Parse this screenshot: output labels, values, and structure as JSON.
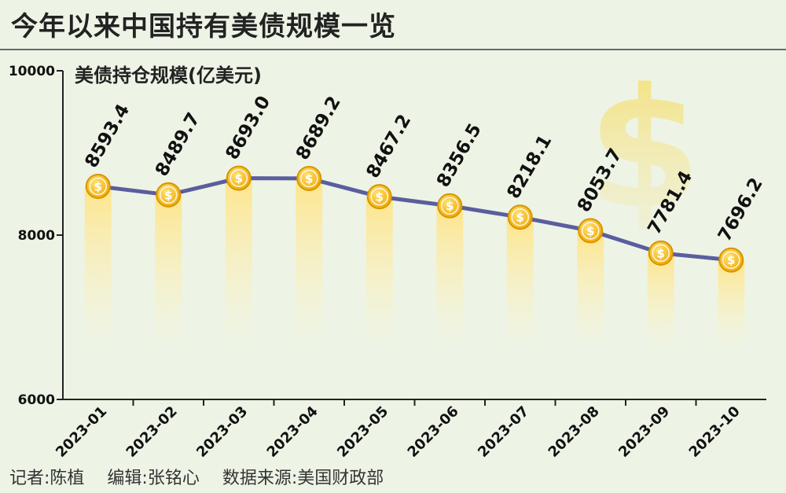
{
  "title": "今年以来中国持有美债规模一览",
  "footer": {
    "reporter": "记者:陈植",
    "editor": "编辑:张铭心",
    "source": "数据来源:美国财政部"
  },
  "dollar_sign": "$",
  "colors": {
    "background": "#edf4e6",
    "line": "#5a5e9e",
    "coin": "#f3b400",
    "bar_top": "#fde58a"
  },
  "chart_data": {
    "type": "line",
    "title": "今年以来中国持有美债规模一览",
    "ylabel": "美债持仓规模(亿美元)",
    "xlabel": "",
    "ylim": [
      6000,
      10000
    ],
    "yticks": [
      6000,
      8000,
      10000
    ],
    "categories": [
      "2023-01",
      "2023-02",
      "2023-03",
      "2023-04",
      "2023-05",
      "2023-06",
      "2023-07",
      "2023-08",
      "2023-09",
      "2023-10"
    ],
    "series": [
      {
        "name": "美债持仓规模",
        "values": [
          8593.4,
          8489.7,
          8693.0,
          8689.2,
          8467.2,
          8356.5,
          8218.1,
          8053.7,
          7781.4,
          7696.2
        ],
        "labels": [
          "8593.4",
          "8489.7",
          "8693.0",
          "8689.2",
          "8467.2",
          "8356.5",
          "8218.1",
          "8053.7",
          "7781.4",
          "7696.2"
        ]
      }
    ]
  }
}
